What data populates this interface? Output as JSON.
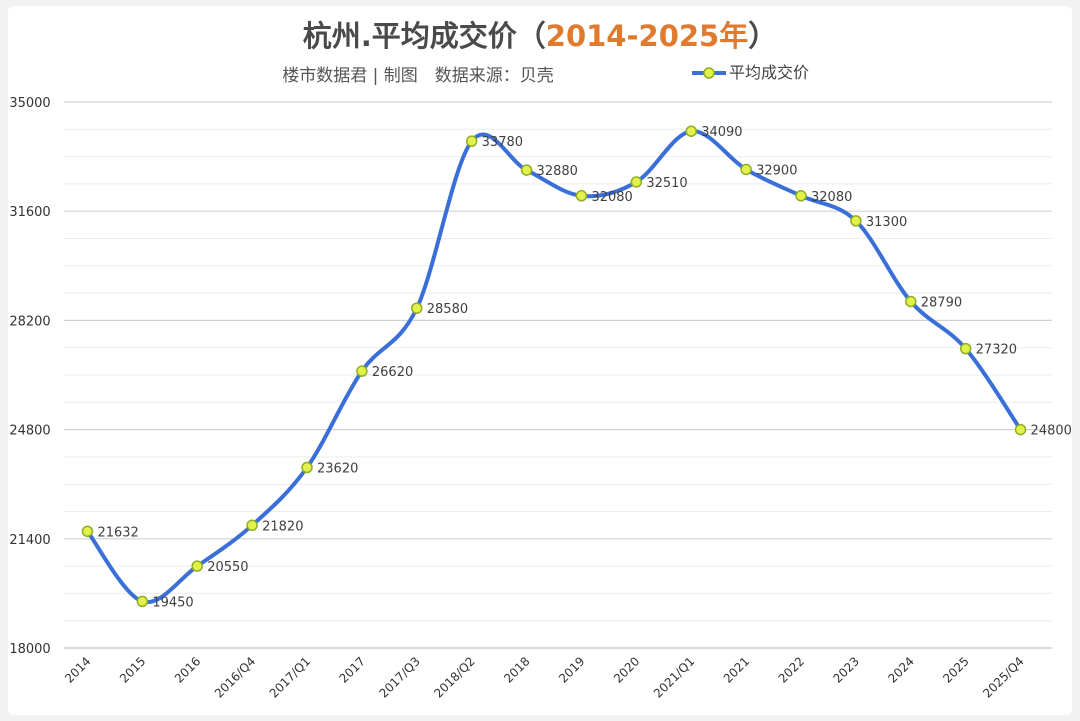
{
  "chart_data": {
    "type": "line",
    "title": "杭州.平均成交价（2014-2025年）",
    "title_parts": {
      "main": "杭州.平均成交价（",
      "accent": "2014-2025年",
      "end": "）"
    },
    "subtitle": "楼市数据君 | 制图　数据来源：贝壳",
    "categories": [
      "2014",
      "2015",
      "2016",
      "2016/Q4",
      "2017/Q1",
      "2017",
      "2017/Q3",
      "2018/Q2",
      "2018",
      "2019",
      "2020",
      "2021/Q1",
      "2021",
      "2022",
      "2023",
      "2024",
      "2025",
      "2025/Q4"
    ],
    "series": [
      {
        "name": "平均成交价",
        "values": [
          21632,
          19450,
          20550,
          21820,
          23620,
          26620,
          28580,
          33780,
          32880,
          32080,
          32510,
          34090,
          32900,
          32080,
          31300,
          28790,
          27320,
          24800
        ],
        "color": "#3a6fd8",
        "marker_fill": "#e2f24a",
        "marker_stroke": "#8fae22"
      }
    ],
    "yticks": [
      18000,
      21400,
      24800,
      28200,
      31600,
      35000
    ],
    "ylim": [
      18000,
      35000
    ],
    "grid": true,
    "legend_position": "top-right",
    "colors": {
      "title": "#4a4a4a",
      "title_accent": "#e07a2e",
      "grid": "#dcdcdc"
    }
  }
}
